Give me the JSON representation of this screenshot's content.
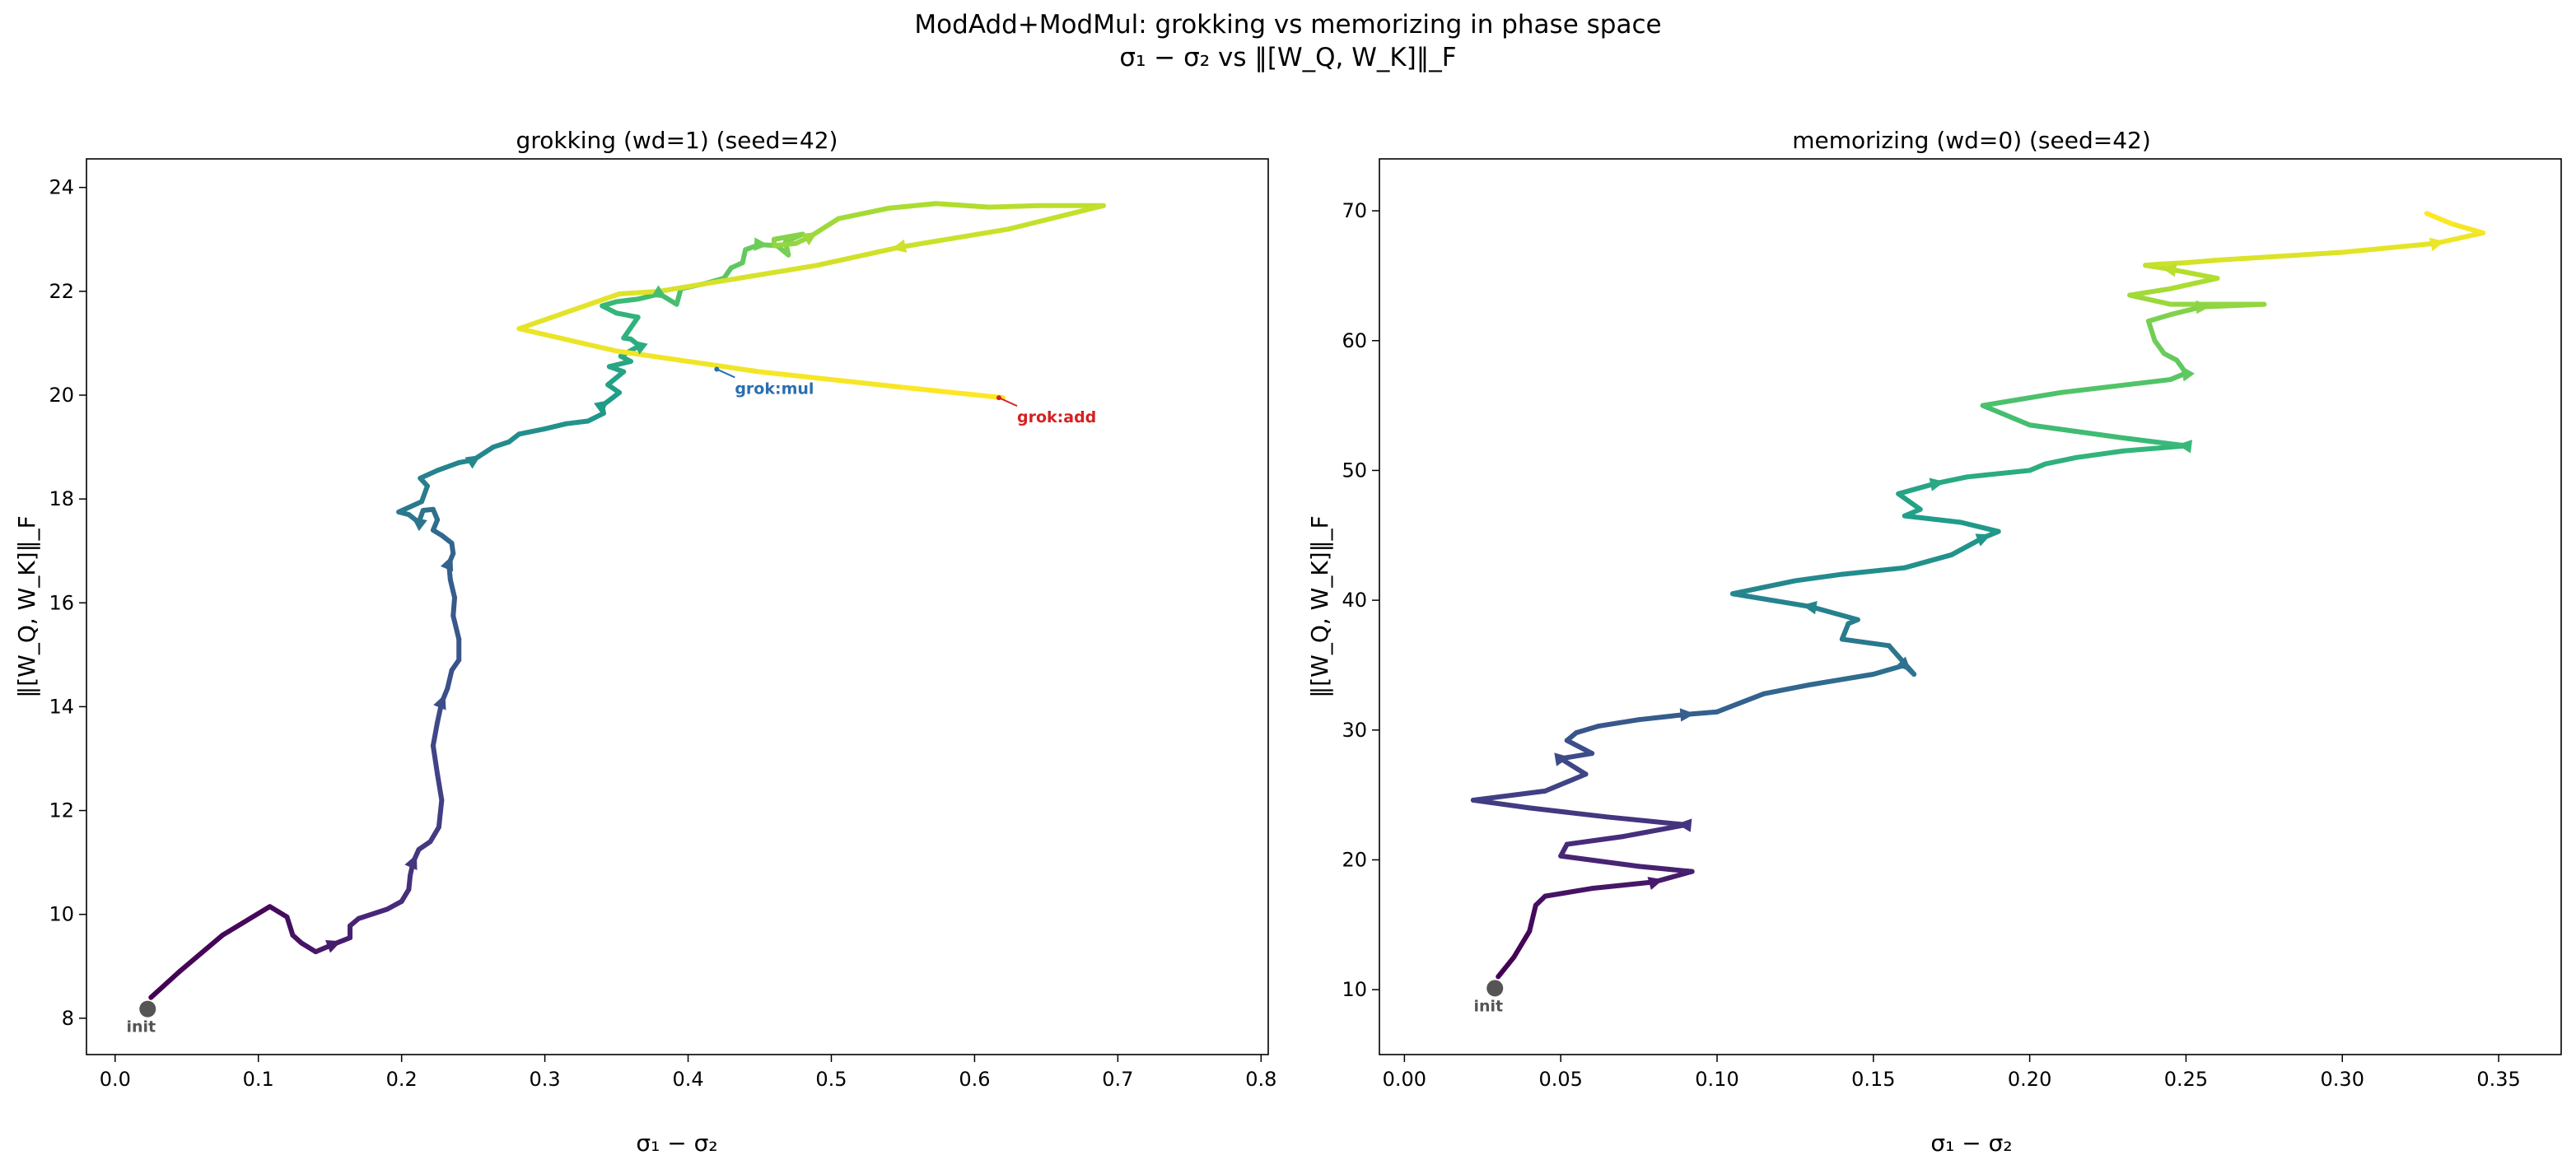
{
  "figure": {
    "title_line1": "ModAdd+ModMul: grokking vs memorizing in phase space",
    "title_line2": "σ₁ − σ₂ vs ‖[W_Q, W_K]‖_F"
  },
  "chart_data": [
    {
      "type": "line",
      "title": "grokking (wd=1)  (seed=42)",
      "xlabel": "σ₁ − σ₂",
      "ylabel": "‖[W_Q, W_K]‖_F",
      "xlim": [
        -0.02,
        0.805
      ],
      "ylim": [
        7.3,
        24.55
      ],
      "xticks": [
        0.0,
        0.1,
        0.2,
        0.3,
        0.4,
        0.5,
        0.6,
        0.7,
        0.8
      ],
      "xtick_labels": [
        "0.0",
        "0.1",
        "0.2",
        "0.3",
        "0.4",
        "0.5",
        "0.6",
        "0.7",
        "0.8"
      ],
      "yticks": [
        8,
        10,
        12,
        14,
        16,
        18,
        20,
        22,
        24
      ],
      "ytick_labels": [
        "8",
        "10",
        "12",
        "14",
        "16",
        "18",
        "20",
        "22",
        "24"
      ],
      "grid": false,
      "colormap": "viridis",
      "init_label": "init",
      "series": [
        {
          "x": [
            0.025,
            0.045,
            0.075,
            0.108,
            0.12,
            0.124,
            0.13,
            0.14,
            0.152,
            0.164,
            0.164,
            0.17,
            0.19,
            0.2,
            0.205,
            0.206,
            0.208,
            0.212,
            0.22,
            0.226,
            0.228,
            0.225,
            0.222,
            0.225,
            0.228,
            0.232,
            0.235,
            0.24,
            0.24,
            0.236,
            0.237,
            0.234,
            0.233,
            0.236,
            0.235,
            0.228,
            0.222,
            0.225,
            0.222,
            0.215,
            0.212,
            0.205,
            0.198,
            0.214,
            0.218,
            0.213,
            0.225,
            0.24,
            0.25,
            0.264,
            0.275,
            0.282,
            0.3,
            0.315,
            0.33,
            0.341,
            0.34,
            0.345,
            0.352,
            0.344,
            0.355,
            0.345,
            0.36,
            0.353,
            0.366,
            0.36,
            0.355,
            0.365,
            0.35,
            0.34,
            0.35,
            0.365,
            0.38,
            0.392,
            0.395,
            0.412,
            0.425,
            0.43,
            0.438,
            0.44,
            0.45,
            0.462,
            0.47,
            0.468,
            0.48,
            0.46,
            0.46,
            0.475,
            0.485,
            0.505,
            0.54,
            0.573,
            0.61,
            0.645,
            0.69,
            0.624,
            0.548,
            0.49,
            0.38,
            0.352,
            0.282,
            0.35,
            0.45,
            0.55,
            0.62
          ],
          "y": [
            8.4,
            8.9,
            9.6,
            10.15,
            9.95,
            9.6,
            9.45,
            9.28,
            9.42,
            9.55,
            9.78,
            9.92,
            10.1,
            10.25,
            10.48,
            10.75,
            11.0,
            11.25,
            11.4,
            11.68,
            12.2,
            12.7,
            13.25,
            13.7,
            14.08,
            14.35,
            14.7,
            14.9,
            15.3,
            15.75,
            16.1,
            16.45,
            16.75,
            16.95,
            17.15,
            17.3,
            17.4,
            17.6,
            17.8,
            17.78,
            17.55,
            17.7,
            17.75,
            17.95,
            18.25,
            18.4,
            18.55,
            18.7,
            18.75,
            19.0,
            19.1,
            19.25,
            19.35,
            19.45,
            19.5,
            19.65,
            19.8,
            19.9,
            20.05,
            20.2,
            20.45,
            20.55,
            20.65,
            20.75,
            20.95,
            21.08,
            21.1,
            21.5,
            21.58,
            21.72,
            21.8,
            21.85,
            21.95,
            21.75,
            22.05,
            22.15,
            22.25,
            22.45,
            22.55,
            22.8,
            22.9,
            22.88,
            22.7,
            22.95,
            23.1,
            23.0,
            22.88,
            22.92,
            23.05,
            23.4,
            23.6,
            23.69,
            23.62,
            23.65,
            23.65,
            23.2,
            22.85,
            22.5,
            22.0,
            21.95,
            21.28,
            20.85,
            20.45,
            20.15,
            19.95
          ]
        }
      ],
      "annotations": [
        {
          "text": "grok:mul",
          "x": 0.42,
          "y": 20.5,
          "color": "#2a6fb0"
        },
        {
          "text": "grok:add",
          "x": 0.617,
          "y": 19.95,
          "color": "#d62020"
        }
      ]
    },
    {
      "type": "line",
      "title": "memorizing (wd=0)  (seed=42)",
      "xlabel": "σ₁ − σ₂",
      "ylabel": "‖[W_Q, W_K]‖_F",
      "xlim": [
        -0.008,
        0.37
      ],
      "ylim": [
        5.0,
        74.0
      ],
      "xticks": [
        0.0,
        0.05,
        0.1,
        0.15,
        0.2,
        0.25,
        0.3,
        0.35
      ],
      "xtick_labels": [
        "0.00",
        "0.05",
        "0.10",
        "0.15",
        "0.20",
        "0.25",
        "0.30",
        "0.35"
      ],
      "yticks": [
        10,
        20,
        30,
        40,
        50,
        60,
        70
      ],
      "ytick_labels": [
        "10",
        "20",
        "30",
        "40",
        "50",
        "60",
        "70"
      ],
      "grid": false,
      "colormap": "viridis",
      "init_label": "init",
      "series": [
        {
          "x": [
            0.03,
            0.035,
            0.04,
            0.042,
            0.045,
            0.06,
            0.08,
            0.092,
            0.075,
            0.05,
            0.052,
            0.07,
            0.09,
            0.065,
            0.04,
            0.022,
            0.045,
            0.058,
            0.05,
            0.06,
            0.052,
            0.055,
            0.062,
            0.075,
            0.09,
            0.1,
            0.115,
            0.13,
            0.135,
            0.15,
            0.16,
            0.163,
            0.155,
            0.14,
            0.142,
            0.145,
            0.13,
            0.105,
            0.125,
            0.14,
            0.16,
            0.175,
            0.185,
            0.19,
            0.178,
            0.16,
            0.165,
            0.158,
            0.17,
            0.18,
            0.2,
            0.205,
            0.215,
            0.23,
            0.25,
            0.23,
            0.2,
            0.185,
            0.21,
            0.245,
            0.25,
            0.247,
            0.243,
            0.24,
            0.238,
            0.245,
            0.255,
            0.275,
            0.245,
            0.232,
            0.245,
            0.26,
            0.245,
            0.237,
            0.242,
            0.25,
            0.26,
            0.3,
            0.33,
            0.345,
            0.335,
            0.327
          ],
          "y": [
            11.0,
            12.5,
            14.5,
            16.5,
            17.2,
            17.8,
            18.3,
            19.1,
            19.5,
            20.3,
            21.2,
            21.8,
            22.7,
            23.3,
            24.0,
            24.6,
            25.3,
            26.6,
            27.8,
            28.2,
            29.2,
            29.8,
            30.3,
            30.8,
            31.2,
            31.4,
            32.8,
            33.5,
            33.7,
            34.3,
            35.0,
            34.3,
            36.5,
            37.0,
            38.2,
            38.5,
            39.5,
            40.5,
            41.5,
            42.0,
            42.5,
            43.5,
            44.8,
            45.3,
            46.0,
            46.5,
            47.0,
            48.2,
            49.0,
            49.5,
            50.0,
            50.5,
            51.0,
            51.5,
            51.9,
            52.5,
            53.5,
            55.0,
            56.0,
            57.0,
            57.5,
            58.5,
            59.0,
            60.0,
            61.5,
            62.0,
            62.6,
            62.8,
            62.8,
            63.5,
            64.0,
            64.8,
            65.5,
            65.8,
            65.9,
            66.0,
            66.2,
            66.8,
            67.5,
            68.3,
            69.0,
            69.8
          ]
        }
      ],
      "annotations": []
    }
  ]
}
